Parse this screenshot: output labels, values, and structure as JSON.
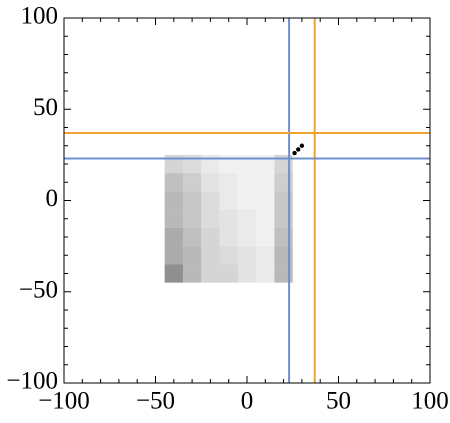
{
  "chart_data": {
    "type": "heatmap",
    "xbins": [
      -45,
      -35,
      -25,
      -15,
      -5,
      5,
      15,
      25
    ],
    "ybins": [
      -45,
      -35,
      -25,
      -15,
      -5,
      5,
      15,
      25
    ],
    "values": [
      [
        0.8,
        0.5,
        0.3,
        0.3,
        0.2,
        0.15,
        0.5
      ],
      [
        0.6,
        0.5,
        0.3,
        0.25,
        0.2,
        0.15,
        0.5
      ],
      [
        0.6,
        0.45,
        0.3,
        0.2,
        0.15,
        0.1,
        0.45
      ],
      [
        0.5,
        0.4,
        0.25,
        0.2,
        0.15,
        0.1,
        0.4
      ],
      [
        0.5,
        0.4,
        0.25,
        0.15,
        0.1,
        0.1,
        0.4
      ],
      [
        0.45,
        0.35,
        0.2,
        0.15,
        0.1,
        0.1,
        0.35
      ],
      [
        0.3,
        0.25,
        0.15,
        0.1,
        0.1,
        0.1,
        0.3
      ]
    ],
    "color": "#000000",
    "points": {
      "x": [
        26,
        28,
        30
      ],
      "y": [
        26,
        28,
        30
      ],
      "color": "#000000"
    },
    "vlines": [
      {
        "value": 23,
        "color": "#6f8fcf"
      },
      {
        "value": 37,
        "color": "#f0a030"
      }
    ],
    "hlines": [
      {
        "value": 37,
        "color": "#f0a030"
      },
      {
        "value": 23,
        "color": "#6f8fcf"
      }
    ],
    "xlim": [
      -100,
      100
    ],
    "ylim": [
      -100,
      100
    ],
    "xticks": [
      {
        "value": -100,
        "label": "−100"
      },
      {
        "value": -50,
        "label": "−50"
      },
      0,
      50,
      100
    ],
    "yticks": [
      {
        "value": -100,
        "label": "−100"
      },
      {
        "value": -50,
        "label": "−50"
      },
      0,
      50,
      100
    ],
    "minor_ticks": [
      -90,
      -80,
      -70,
      -60,
      -40,
      -30,
      -20,
      -10,
      10,
      20,
      30,
      40,
      60,
      70,
      80,
      90
    ]
  }
}
